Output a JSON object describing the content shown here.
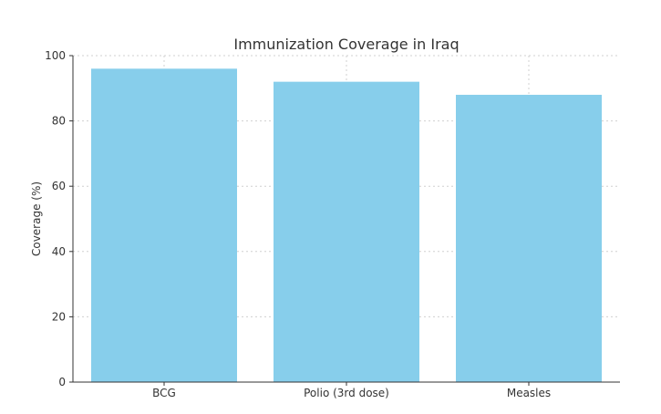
{
  "chart_data": {
    "type": "bar",
    "title": "Immunization Coverage in Iraq",
    "xlabel": "",
    "ylabel": "Coverage (%)",
    "categories": [
      "BCG",
      "Polio (3rd dose)",
      "Measles"
    ],
    "values": [
      96,
      92,
      88
    ],
    "ylim": [
      0,
      100
    ],
    "yticks": [
      0,
      20,
      40,
      60,
      80,
      100
    ],
    "grid": true,
    "bar_color": "#87ceeb",
    "grid_color": "#d0d0d0",
    "axis_color": "#333333"
  }
}
